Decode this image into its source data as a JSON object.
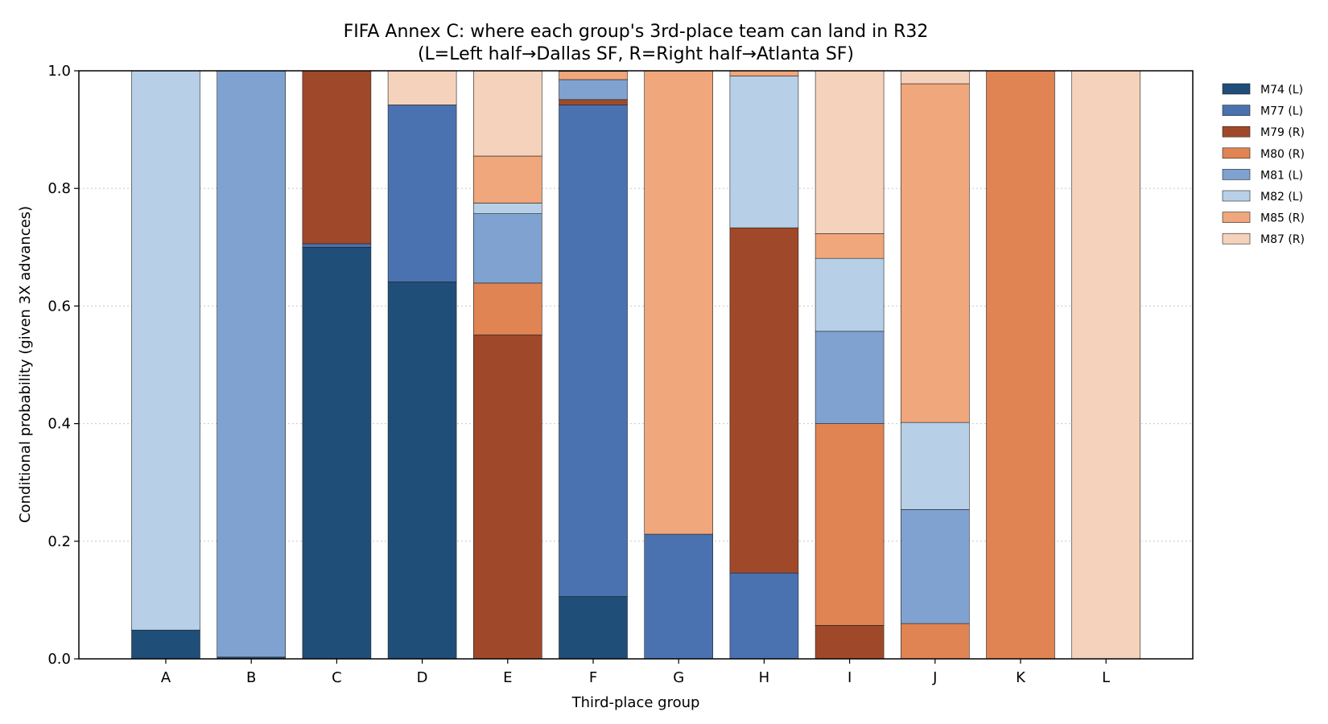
{
  "chart_data": {
    "type": "bar",
    "stacked": true,
    "title": "FIFA Annex C: where each group's 3rd-place team can land in R32",
    "subtitle": "(L=Left half→Dallas SF, R=Right half→Atlanta SF)",
    "xlabel": "Third-place group",
    "ylabel": "Conditional probability (given 3X advances)",
    "ylim": [
      0,
      1.0
    ],
    "yticks": [
      "0.0",
      "0.2",
      "0.4",
      "0.6",
      "0.8",
      "1.0"
    ],
    "grid": "y dotted",
    "legend_position": "right, outside plot",
    "categories": [
      "A",
      "B",
      "C",
      "D",
      "E",
      "F",
      "G",
      "H",
      "I",
      "J",
      "K",
      "L"
    ],
    "series": [
      {
        "name": "M74 (L)",
        "color": "#1f4e79",
        "values": [
          0.049,
          0.003,
          0.7,
          0.641,
          0,
          0.106,
          0,
          0,
          0,
          0,
          0,
          0
        ]
      },
      {
        "name": "M77 (L)",
        "color": "#4a72b0",
        "values": [
          0,
          0,
          0.006,
          0.301,
          0,
          0.836,
          0.212,
          0.146,
          0,
          0,
          0,
          0
        ]
      },
      {
        "name": "M79 (R)",
        "color": "#a0492a",
        "values": [
          0,
          0,
          0.294,
          0,
          0.551,
          0.009,
          0,
          0.587,
          0.057,
          0,
          0,
          0
        ]
      },
      {
        "name": "M80 (R)",
        "color": "#e08453",
        "values": [
          0,
          0,
          0,
          0,
          0.088,
          0,
          0,
          0,
          0.343,
          0.06,
          1.0,
          0
        ]
      },
      {
        "name": "M81 (L)",
        "color": "#7fa2d0",
        "values": [
          0,
          0.997,
          0,
          0,
          0.118,
          0.034,
          0,
          0,
          0.157,
          0.194,
          0,
          0
        ]
      },
      {
        "name": "M82 (L)",
        "color": "#b7d0e8",
        "values": [
          0.951,
          0,
          0,
          0,
          0.018,
          0,
          0,
          0.258,
          0.124,
          0.148,
          0,
          0
        ]
      },
      {
        "name": "M85 (R)",
        "color": "#f0a77b",
        "values": [
          0,
          0,
          0,
          0,
          0.08,
          0.014,
          0.788,
          0.009,
          0.042,
          0.576,
          0,
          0
        ]
      },
      {
        "name": "M87 (R)",
        "color": "#f5d2bb",
        "values": [
          0,
          0,
          0,
          0.058,
          0.145,
          0.001,
          0,
          0,
          0.277,
          0.022,
          0,
          1.0
        ]
      }
    ]
  }
}
